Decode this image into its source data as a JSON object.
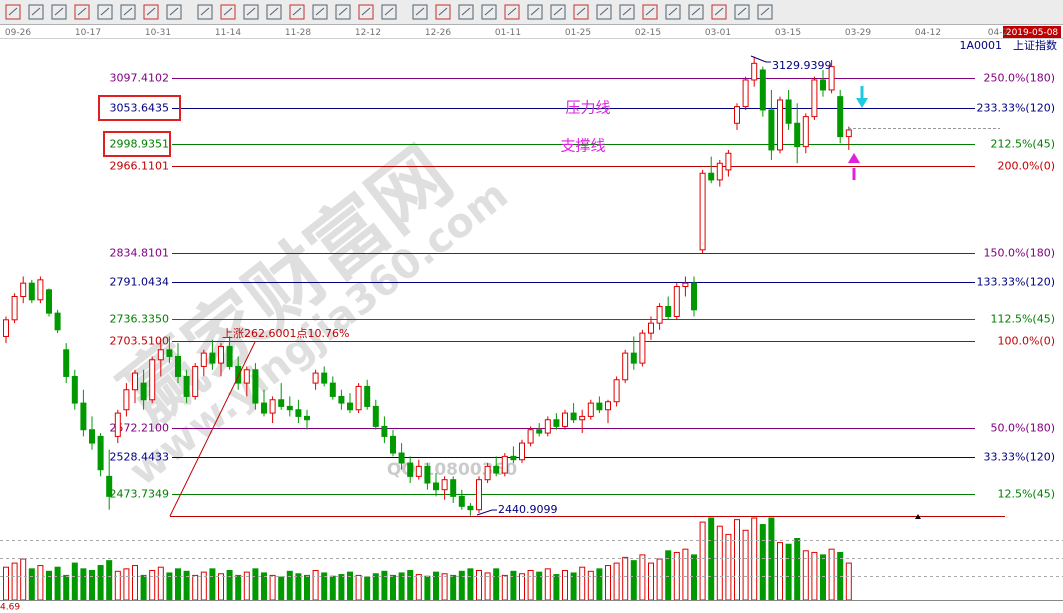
{
  "chart_data": {
    "type": "candlestick",
    "code": "1A0001",
    "title": "上证指数",
    "date_labels": [
      "09-26",
      "10-17",
      "10-31",
      "11-14",
      "11-28",
      "12-12",
      "12-26",
      "01-11",
      "01-25",
      "02-15",
      "03-01",
      "03-15",
      "03-29",
      "04-12",
      "04-2"
    ],
    "current_date": "2019-05-08",
    "ylim": [
      2430,
      3155
    ],
    "up_color": "#e00000",
    "down_color": "#009900",
    "ohlc": [
      [
        2710,
        2740,
        2700,
        2735
      ],
      [
        2735,
        2775,
        2730,
        2770
      ],
      [
        2770,
        2800,
        2760,
        2790
      ],
      [
        2790,
        2795,
        2760,
        2765
      ],
      [
        2765,
        2800,
        2760,
        2795
      ],
      [
        2780,
        2782,
        2740,
        2745
      ],
      [
        2745,
        2750,
        2715,
        2720
      ],
      [
        2690,
        2700,
        2640,
        2650
      ],
      [
        2650,
        2660,
        2600,
        2610
      ],
      [
        2610,
        2630,
        2560,
        2570
      ],
      [
        2570,
        2590,
        2540,
        2550
      ],
      [
        2560,
        2565,
        2500,
        2510
      ],
      [
        2500,
        2540,
        2450,
        2470
      ],
      [
        2560,
        2600,
        2550,
        2595
      ],
      [
        2600,
        2640,
        2590,
        2630
      ],
      [
        2630,
        2660,
        2610,
        2655
      ],
      [
        2640,
        2660,
        2600,
        2615
      ],
      [
        2615,
        2680,
        2610,
        2675
      ],
      [
        2675,
        2700,
        2650,
        2690
      ],
      [
        2690,
        2710,
        2670,
        2680
      ],
      [
        2680,
        2700,
        2640,
        2650
      ],
      [
        2650,
        2660,
        2610,
        2620
      ],
      [
        2620,
        2670,
        2615,
        2665
      ],
      [
        2665,
        2690,
        2650,
        2685
      ],
      [
        2685,
        2705,
        2660,
        2670
      ],
      [
        2670,
        2700,
        2650,
        2695
      ],
      [
        2695,
        2710,
        2660,
        2665
      ],
      [
        2665,
        2680,
        2630,
        2640
      ],
      [
        2640,
        2665,
        2620,
        2660
      ],
      [
        2660,
        2670,
        2600,
        2610
      ],
      [
        2610,
        2630,
        2590,
        2595
      ],
      [
        2595,
        2620,
        2580,
        2615
      ],
      [
        2615,
        2640,
        2600,
        2605
      ],
      [
        2605,
        2620,
        2590,
        2600
      ],
      [
        2600,
        2615,
        2580,
        2590
      ],
      [
        2590,
        2600,
        2570,
        2585
      ],
      [
        2640,
        2660,
        2630,
        2655
      ],
      [
        2655,
        2665,
        2635,
        2640
      ],
      [
        2640,
        2650,
        2615,
        2620
      ],
      [
        2620,
        2630,
        2600,
        2610
      ],
      [
        2610,
        2625,
        2595,
        2600
      ],
      [
        2600,
        2640,
        2595,
        2635
      ],
      [
        2635,
        2645,
        2600,
        2605
      ],
      [
        2605,
        2615,
        2570,
        2575
      ],
      [
        2575,
        2590,
        2550,
        2560
      ],
      [
        2560,
        2570,
        2530,
        2535
      ],
      [
        2535,
        2550,
        2510,
        2520
      ],
      [
        2520,
        2530,
        2490,
        2500
      ],
      [
        2500,
        2525,
        2495,
        2515
      ],
      [
        2515,
        2520,
        2480,
        2490
      ],
      [
        2490,
        2505,
        2470,
        2480
      ],
      [
        2480,
        2500,
        2465,
        2495
      ],
      [
        2495,
        2500,
        2460,
        2470
      ],
      [
        2470,
        2480,
        2450,
        2455
      ],
      [
        2455,
        2460,
        2441,
        2450
      ],
      [
        2450,
        2500,
        2445,
        2495
      ],
      [
        2495,
        2520,
        2490,
        2515
      ],
      [
        2515,
        2530,
        2500,
        2505
      ],
      [
        2505,
        2535,
        2500,
        2530
      ],
      [
        2530,
        2545,
        2520,
        2525
      ],
      [
        2525,
        2555,
        2520,
        2550
      ],
      [
        2550,
        2575,
        2545,
        2570
      ],
      [
        2570,
        2580,
        2560,
        2565
      ],
      [
        2565,
        2590,
        2560,
        2585
      ],
      [
        2585,
        2595,
        2570,
        2575
      ],
      [
        2575,
        2600,
        2570,
        2595
      ],
      [
        2595,
        2610,
        2580,
        2585
      ],
      [
        2585,
        2600,
        2565,
        2590
      ],
      [
        2590,
        2615,
        2585,
        2610
      ],
      [
        2610,
        2620,
        2595,
        2600
      ],
      [
        2600,
        2615,
        2580,
        2612
      ],
      [
        2612,
        2650,
        2605,
        2645
      ],
      [
        2645,
        2690,
        2640,
        2685
      ],
      [
        2685,
        2710,
        2660,
        2670
      ],
      [
        2670,
        2720,
        2665,
        2715
      ],
      [
        2715,
        2740,
        2705,
        2730
      ],
      [
        2730,
        2760,
        2720,
        2755
      ],
      [
        2755,
        2770,
        2735,
        2740
      ],
      [
        2740,
        2790,
        2735,
        2785
      ],
      [
        2785,
        2800,
        2770,
        2790
      ],
      [
        2790,
        2800,
        2740,
        2750
      ],
      [
        2840,
        2960,
        2835,
        2955
      ],
      [
        2955,
        2980,
        2940,
        2945
      ],
      [
        2945,
        2975,
        2935,
        2970
      ],
      [
        2960,
        2990,
        2950,
        2985
      ],
      [
        3030,
        3060,
        3020,
        3055
      ],
      [
        3055,
        3100,
        3050,
        3095
      ],
      [
        3095,
        3130,
        3085,
        3120
      ],
      [
        3110,
        3115,
        3040,
        3050
      ],
      [
        3050,
        3080,
        2975,
        2990
      ],
      [
        2990,
        3070,
        2985,
        3065
      ],
      [
        3065,
        3080,
        3020,
        3030
      ],
      [
        3030,
        3060,
        2970,
        2995
      ],
      [
        2995,
        3045,
        2985,
        3040
      ],
      [
        3040,
        3100,
        3035,
        3095
      ],
      [
        3095,
        3110,
        3070,
        3080
      ],
      [
        3080,
        3125,
        3075,
        3115
      ],
      [
        3070,
        3080,
        3000,
        3010
      ],
      [
        3010,
        3025,
        2990,
        3020
      ]
    ],
    "volume": {
      "ylim": [
        0,
        100
      ],
      "values": [
        40,
        45,
        50,
        38,
        42,
        35,
        40,
        30,
        45,
        38,
        36,
        42,
        48,
        35,
        38,
        42,
        30,
        36,
        40,
        33,
        38,
        35,
        30,
        34,
        38,
        32,
        36,
        30,
        34,
        38,
        33,
        30,
        28,
        35,
        32,
        30,
        36,
        33,
        29,
        31,
        34,
        30,
        28,
        32,
        35,
        30,
        33,
        36,
        31,
        29,
        34,
        32,
        30,
        35,
        38,
        36,
        33,
        38,
        30,
        35,
        32,
        36,
        34,
        38,
        31,
        36,
        33,
        40,
        35,
        38,
        42,
        45,
        52,
        48,
        55,
        45,
        50,
        60,
        58,
        62,
        55,
        95,
        100,
        90,
        80,
        98,
        85,
        100,
        92,
        100,
        70,
        68,
        75,
        60,
        58,
        55,
        62,
        58,
        45
      ]
    },
    "levels": [
      {
        "value": 3097.4102,
        "label": "3097.4102",
        "ratio": "250.0%(180)",
        "color": "#800080"
      },
      {
        "value": 3053.6435,
        "label": "3053.6435",
        "ratio": "233.33%(120)",
        "color": "#000080"
      },
      {
        "value": 2998.9351,
        "label": "2998.9351",
        "ratio": "212.5%(45)",
        "color": "#008000"
      },
      {
        "value": 2966.1101,
        "label": "2966.1101",
        "ratio": "200.0%(0)",
        "color": "#c00000"
      },
      {
        "value": 2834.8101,
        "label": "2834.8101",
        "ratio": "150.0%(180)",
        "color": "#800080"
      },
      {
        "value": 2791.0434,
        "label": "2791.0434",
        "ratio": "133.33%(120)",
        "color": "#000080"
      },
      {
        "value": 2736.335,
        "label": "2736.3350",
        "ratio": "112.5%(45)",
        "color": "#008000"
      },
      {
        "value": 2703.51,
        "label": "2703.5100",
        "ratio": "100.0%(0)",
        "color": "#c00000"
      },
      {
        "value": 2572.21,
        "label": "2572.2100",
        "ratio": "50.0%(180)",
        "color": "#800080"
      },
      {
        "value": 2528.4433,
        "label": "2528.4433",
        "ratio": "33.33%(120)",
        "color": "#000080"
      },
      {
        "value": 2473.7349,
        "label": "2473.7349",
        "ratio": "12.5%(45)",
        "color": "#008000"
      }
    ],
    "low": {
      "value": 2440.9099,
      "label": "2440.9099"
    },
    "high": {
      "value": 3129.9399,
      "label": "3129.9399"
    },
    "annotations": {
      "resistance": "压力线",
      "support": "支撑线",
      "rise": "上涨262.6001点10.76%"
    },
    "watermarks": {
      "brand": "赢家财富网",
      "site": "www.yingjia360.com",
      "qq": "QQ:10800360"
    },
    "corner_value": "4.69"
  }
}
